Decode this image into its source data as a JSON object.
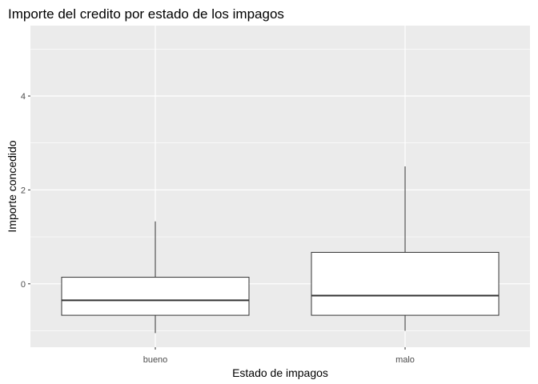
{
  "chart_data": {
    "type": "boxplot",
    "title": "Importe del credito por estado de los impagos",
    "xlabel": "Estado de impagos",
    "ylabel": "Importe concedido",
    "ylim": [
      -1.35,
      5.5
    ],
    "yticks": [
      0,
      2,
      4
    ],
    "yticks_minor": [
      -1,
      1,
      3,
      5
    ],
    "grid": true,
    "categories": [
      "bueno",
      "malo"
    ],
    "boxes": [
      {
        "category": "bueno",
        "whisker_low": -1.05,
        "q1": -0.67,
        "median": -0.35,
        "q3": 0.14,
        "whisker_high": 1.33
      },
      {
        "category": "malo",
        "whisker_low": -1.0,
        "q1": -0.67,
        "median": -0.25,
        "q3": 0.67,
        "whisker_high": 2.5
      }
    ],
    "colors": {
      "panel": "#ebebeb",
      "grid": "#ffffff",
      "box_fill": "#ffffff",
      "box_stroke": "#333333"
    }
  }
}
